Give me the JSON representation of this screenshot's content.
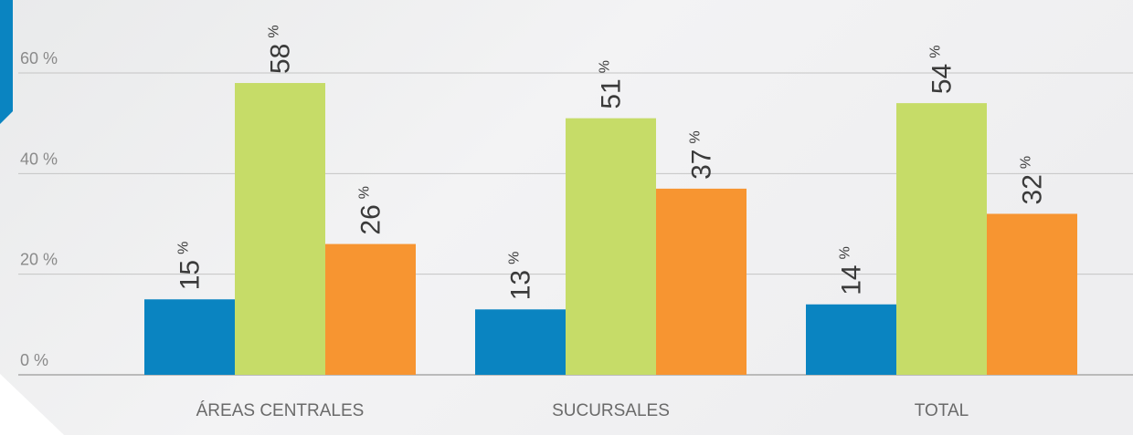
{
  "chart_data": {
    "type": "bar",
    "categories": [
      "ÁREAS CENTRALES",
      "SUCURSALES",
      "TOTAL"
    ],
    "series": [
      {
        "values": [
          15,
          13,
          14
        ],
        "color": "#0a84c1"
      },
      {
        "values": [
          58,
          51,
          54
        ],
        "color": "#c6dc68"
      },
      {
        "values": [
          26,
          37,
          32
        ],
        "color": "#f79531"
      }
    ],
    "y_ticks": [
      "0 %",
      "20 %",
      "40 %",
      "60 %"
    ],
    "y_tick_values": [
      0,
      20,
      40,
      60
    ],
    "ylim": [
      0,
      75
    ],
    "value_suffix": "%",
    "grid": true,
    "legend": "none"
  }
}
